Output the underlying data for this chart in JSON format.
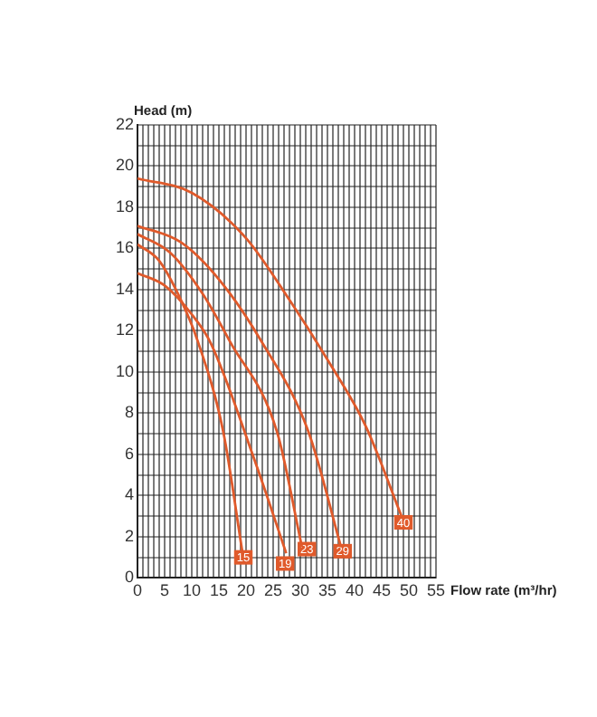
{
  "chart_data": {
    "type": "line",
    "xlabel": "Flow rate (m³/hr)",
    "ylabel": "Head (m)",
    "xlim": [
      0,
      55
    ],
    "ylim": [
      0,
      22
    ],
    "xticks": [
      0,
      {
        "value": 1,
        "label": null
      },
      {
        "value": 2,
        "label": null
      },
      {
        "value": 3,
        "label": null
      },
      {
        "value": 4,
        "label": null
      },
      5,
      {
        "value": 6,
        "label": null
      },
      {
        "value": 7,
        "label": null
      },
      {
        "value": 8,
        "label": null
      },
      {
        "value": 9,
        "label": null
      },
      10,
      {
        "value": 11,
        "label": null
      },
      {
        "value": 12,
        "label": null
      },
      {
        "value": 13,
        "label": null
      },
      {
        "value": 14,
        "label": null
      },
      15,
      {
        "value": 16,
        "label": null
      },
      {
        "value": 17,
        "label": null
      },
      {
        "value": 18,
        "label": null
      },
      {
        "value": 19,
        "label": null
      },
      20,
      {
        "value": 21,
        "label": null
      },
      {
        "value": 22,
        "label": null
      },
      {
        "value": 23,
        "label": null
      },
      {
        "value": 24,
        "label": null
      },
      25,
      {
        "value": 26,
        "label": null
      },
      {
        "value": 27,
        "label": null
      },
      {
        "value": 28,
        "label": null
      },
      {
        "value": 29,
        "label": null
      },
      30,
      {
        "value": 31,
        "label": null
      },
      {
        "value": 32,
        "label": null
      },
      {
        "value": 33,
        "label": null
      },
      {
        "value": 34,
        "label": null
      },
      35,
      {
        "value": 36,
        "label": null
      },
      {
        "value": 37,
        "label": null
      },
      {
        "value": 38,
        "label": null
      },
      {
        "value": 39,
        "label": null
      },
      40,
      {
        "value": 41,
        "label": null
      },
      {
        "value": 42,
        "label": null
      },
      {
        "value": 43,
        "label": null
      },
      {
        "value": 44,
        "label": null
      },
      45,
      {
        "value": 46,
        "label": null
      },
      {
        "value": 47,
        "label": null
      },
      {
        "value": 48,
        "label": null
      },
      {
        "value": 49,
        "label": null
      },
      50,
      {
        "value": 51,
        "label": null
      },
      {
        "value": 52,
        "label": null
      },
      {
        "value": 53,
        "label": null
      },
      {
        "value": 54,
        "label": null
      },
      55
    ],
    "yticks": [
      0,
      {
        "value": 1,
        "label": null
      },
      2,
      {
        "value": 3,
        "label": null
      },
      4,
      {
        "value": 5,
        "label": null
      },
      6,
      {
        "value": 7,
        "label": null
      },
      8,
      {
        "value": 9,
        "label": null
      },
      10,
      {
        "value": 11,
        "label": null
      },
      12,
      {
        "value": 13,
        "label": null
      },
      14,
      {
        "value": 15,
        "label": null
      },
      16,
      {
        "value": 17,
        "label": null
      },
      18,
      {
        "value": 19,
        "label": null
      },
      20,
      {
        "value": 21,
        "label": null
      },
      22
    ],
    "grid": true,
    "legend": false,
    "marker": "none",
    "line_style": "solid",
    "series": [
      {
        "color": "#e05a2b",
        "x": [
          0,
          4,
          8,
          11.1,
          15.8,
          19.3
        ],
        "values": [
          16.2,
          15.4,
          13.5,
          11.5,
          7.1,
          1.3
        ]
      },
      {
        "color": "#e05a2b",
        "x": [
          0,
          5,
          10,
          13.5,
          21.6,
          27.4
        ],
        "values": [
          14.8,
          14.2,
          12.8,
          11.4,
          5.7,
          1.2
        ]
      },
      {
        "color": "#e05a2b",
        "x": [
          0,
          6,
          12,
          17,
          25.7,
          30.3
        ],
        "values": [
          16.7,
          15.8,
          13.8,
          11.5,
          7.1,
          1.5
        ]
      },
      {
        "color": "#e05a2b",
        "x": [
          0,
          8,
          15,
          22.8,
          31.5,
          37.5
        ],
        "values": [
          17.1,
          16.3,
          14.5,
          11.5,
          7.1,
          1.5
        ]
      },
      {
        "color": "#e05a2b",
        "x": [
          0,
          10,
          20,
          28,
          35,
          42,
          48.8
        ],
        "values": [
          19.4,
          18.7,
          16.5,
          13.5,
          10.6,
          7.4,
          2.9
        ]
      }
    ],
    "annotations": [
      {
        "text": "15",
        "x": 19.5,
        "y": 1.0
      },
      {
        "text": "19",
        "x": 27.2,
        "y": 0.7
      },
      {
        "text": "23",
        "x": 31.2,
        "y": 1.4
      },
      {
        "text": "29",
        "x": 37.8,
        "y": 1.3
      },
      {
        "text": "40",
        "x": 49,
        "y": 2.7
      }
    ]
  }
}
